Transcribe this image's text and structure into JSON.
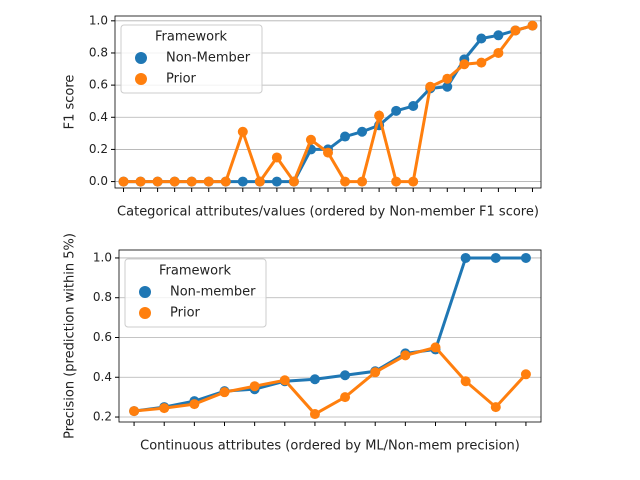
{
  "chart_data": [
    {
      "type": "line",
      "xlabel": "Categorical attributes/values (ordered by Non-member F1 score)",
      "ylabel": "F1 score",
      "categories": [
        null,
        null,
        null,
        null,
        null,
        null,
        null,
        null,
        null,
        null,
        null,
        null,
        null,
        null,
        null,
        null,
        null,
        null,
        null,
        null,
        null,
        null,
        null,
        null,
        null
      ],
      "series": [
        {
          "name": "Non-Member",
          "color": "#1f77b4",
          "values": [
            0,
            0,
            0,
            0,
            0,
            0,
            0,
            0,
            0,
            0,
            0,
            0.2,
            0.2,
            0.28,
            0.31,
            0.35,
            0.44,
            0.47,
            0.58,
            0.59,
            0.76,
            0.89,
            0.91,
            0.94,
            0.97
          ]
        },
        {
          "name": "Prior",
          "color": "#ff7f0e",
          "values": [
            0,
            0,
            0,
            0,
            0,
            0,
            0,
            0.31,
            0,
            0.15,
            0,
            0.26,
            0.18,
            0,
            0,
            0.41,
            0,
            0,
            0.59,
            0.64,
            0.73,
            0.74,
            0.8,
            0.94,
            0.97
          ]
        }
      ],
      "ylim": [
        -0.04,
        1.03
      ],
      "yticks": [
        {
          "value": 0,
          "label": "0.0"
        },
        0.2,
        0.4,
        0.6,
        0.8,
        {
          "value": 1,
          "label": "1.0"
        }
      ],
      "grid": true,
      "legend_title": "Framework",
      "legend": "upper left"
    },
    {
      "type": "line",
      "xlabel": "Continuous attributes (ordered by ML/Non-mem precision)",
      "ylabel": "Precision (prediction within 5%)",
      "categories": [
        null,
        null,
        null,
        null,
        null,
        null,
        null,
        null,
        null,
        null,
        null,
        null,
        null,
        null
      ],
      "series": [
        {
          "name": "Non-member",
          "color": "#1f77b4",
          "values": [
            0.23,
            0.25,
            0.28,
            0.33,
            0.34,
            0.38,
            0.39,
            0.41,
            0.43,
            0.52,
            0.54,
            1.0,
            1.0,
            1.0
          ]
        },
        {
          "name": "Prior",
          "color": "#ff7f0e",
          "values": [
            0.23,
            0.245,
            0.265,
            0.325,
            0.355,
            0.385,
            0.215,
            0.3,
            0.425,
            0.51,
            0.55,
            0.38,
            0.25,
            0.415
          ]
        }
      ],
      "ylim": [
        0.175,
        1.04
      ],
      "yticks": [
        0.2,
        0.4,
        0.6,
        0.8,
        {
          "value": 1,
          "label": "1.0"
        }
      ],
      "grid": true,
      "legend_title": "Framework",
      "legend": "upper left"
    }
  ]
}
